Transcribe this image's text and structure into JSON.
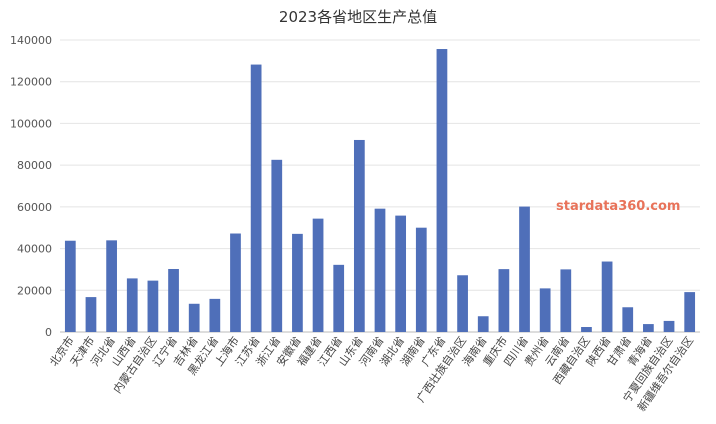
{
  "chart_data": {
    "type": "bar",
    "title": "2023各省地区生产总值",
    "xlabel": "",
    "ylabel": "",
    "ylim": [
      0,
      140000
    ],
    "yticks": [
      "0",
      "20000",
      "40000",
      "60000",
      "80000",
      "100000",
      "120000",
      "140000"
    ],
    "grid": true,
    "bar_color": "#4f6fb9",
    "categories": [
      "北京市",
      "天津市",
      "河北省",
      "山西省",
      "内蒙古自治区",
      "辽宁省",
      "吉林省",
      "黑龙江省",
      "上海市",
      "江苏省",
      "浙江省",
      "安徽省",
      "福建省",
      "江西省",
      "山东省",
      "河南省",
      "湖北省",
      "湖南省",
      "广东省",
      "广西壮族自治区",
      "海南省",
      "重庆市",
      "四川省",
      "贵州省",
      "云南省",
      "西藏自治区",
      "陕西省",
      "甘肃省",
      "青海省",
      "宁夏回族自治区",
      "新疆维吾尔自治区"
    ],
    "values": [
      43760,
      16737,
      43944,
      25698,
      24627,
      30209,
      13531,
      15884,
      47219,
      128222,
      82553,
      47051,
      54355,
      32200,
      92069,
      59132,
      55804,
      50013,
      135673,
      27202,
      7551,
      30146,
      60133,
      20913,
      30021,
      2393,
      33786,
      11864,
      3799,
      5315,
      19126
    ]
  },
  "watermark": "stardata360.com"
}
